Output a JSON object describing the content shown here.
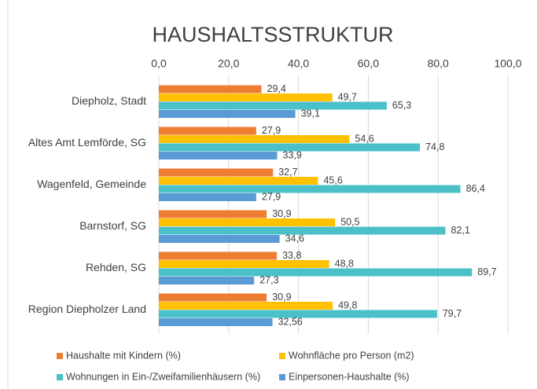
{
  "chart_data": {
    "type": "hbar",
    "title": "HAUSHALTSSTRUKTUR",
    "categories": [
      "Diepholz, Stadt",
      "Altes Amt Lemförde, SG",
      "Wagenfeld, Gemeinde",
      "Barnstorf, SG",
      "Rehden, SG",
      "Region Diepholzer Land"
    ],
    "series": [
      {
        "name": "Haushalte mit Kindern (%)",
        "color": "#ED7D31",
        "values": [
          29.4,
          27.9,
          32.7,
          30.9,
          33.8,
          30.9
        ],
        "value_labels": [
          "29,4",
          "27,9",
          "32,7",
          "30,9",
          "33,8",
          "30,9"
        ]
      },
      {
        "name": "Wohnfläche pro Person (m2)",
        "color": "#FFC000",
        "values": [
          49.7,
          54.6,
          45.6,
          50.5,
          48.8,
          49.8
        ],
        "value_labels": [
          "49,7",
          "54,6",
          "45,6",
          "50,5",
          "48,8",
          "49,8"
        ]
      },
      {
        "name": "Wohnungen in Ein-/Zweifamilienhäusern (%)",
        "color": "#4BC0C8",
        "values": [
          65.3,
          74.8,
          86.4,
          82.1,
          89.7,
          79.7
        ],
        "value_labels": [
          "65,3",
          "74,8",
          "86,4",
          "82,1",
          "89,7",
          "79,7"
        ]
      },
      {
        "name": "Einpersonen-Haushalte (%)",
        "color": "#5B9BD5",
        "values": [
          39.1,
          33.9,
          27.9,
          34.6,
          27.3,
          32.56
        ],
        "value_labels": [
          "39,1",
          "33,9",
          "27,9",
          "34,6",
          "27,3",
          "32,56"
        ]
      }
    ],
    "xlim": [
      0,
      100
    ],
    "xticks": [
      {
        "value": 0,
        "label": "0,0"
      },
      {
        "value": 20,
        "label": "20,0"
      },
      {
        "value": 40,
        "label": "40,0"
      },
      {
        "value": 60,
        "label": "60,0"
      },
      {
        "value": 80,
        "label": "80,0"
      },
      {
        "value": 100,
        "label": "100,0"
      }
    ],
    "grid": true,
    "legend": "bottom"
  }
}
